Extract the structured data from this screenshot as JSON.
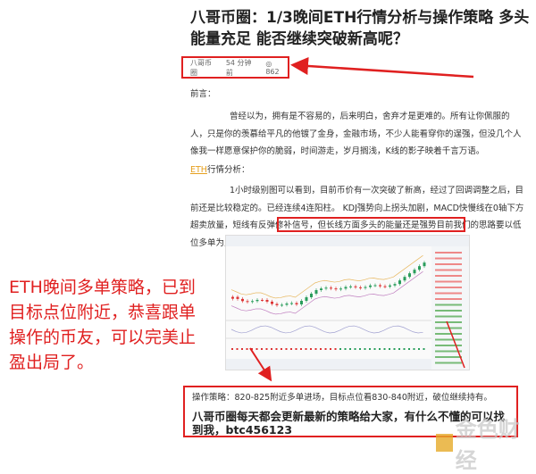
{
  "article": {
    "title": "八哥币圈：1/3晚间ETH行情分析与操作策略 多头能量充足 能否继续突破新高呢？",
    "meta": {
      "author": "八哥币圈",
      "time": "54 分钟前",
      "views": "862",
      "views_icon": "eye-icon"
    },
    "intro_label": "前言：",
    "intro_text": "曾经以为，拥有是不容易的，后来明白，舍弃才是更难的。所有让你佩服的人，只是你的羡慕给平凡的他镀了金身，金融市场，不少人能看穿你的逞强，但没几个人像我一样愿意保护你的脆弱，时间游走，岁月搁浅，K线的影子映着千言万语。",
    "analysis_link": "ETH",
    "analysis_label": "行情分析：",
    "analysis_text": "1小时级别图可以看到，目前币价有一次突破了新高，经过了回调调整之后，目前还是比较稳定的。已经连续4连阳柱。 KDJ强势向上拐头加剧，MACD快慢线在0轴下方超卖放量，短线有反弹修补信号",
    "analysis_highlight": "，但长线方面多头的能量还是强势目前我们的思路要以低位多单为主。",
    "strategy": "操作策略：820-825附近多单进场，目标点位看830-840附近，破位继续持有。",
    "cta": "八哥币圈每天都会更新最新的策略给大家，有什么不懂的可以找到我，btc456123"
  },
  "annotation": {
    "note": "ETH晚间多单策略，已到目标点位附近，恭喜跟单操作的币友，可以完美止盈出局了。",
    "color": "#e02020"
  },
  "watermark": "金色财经"
}
